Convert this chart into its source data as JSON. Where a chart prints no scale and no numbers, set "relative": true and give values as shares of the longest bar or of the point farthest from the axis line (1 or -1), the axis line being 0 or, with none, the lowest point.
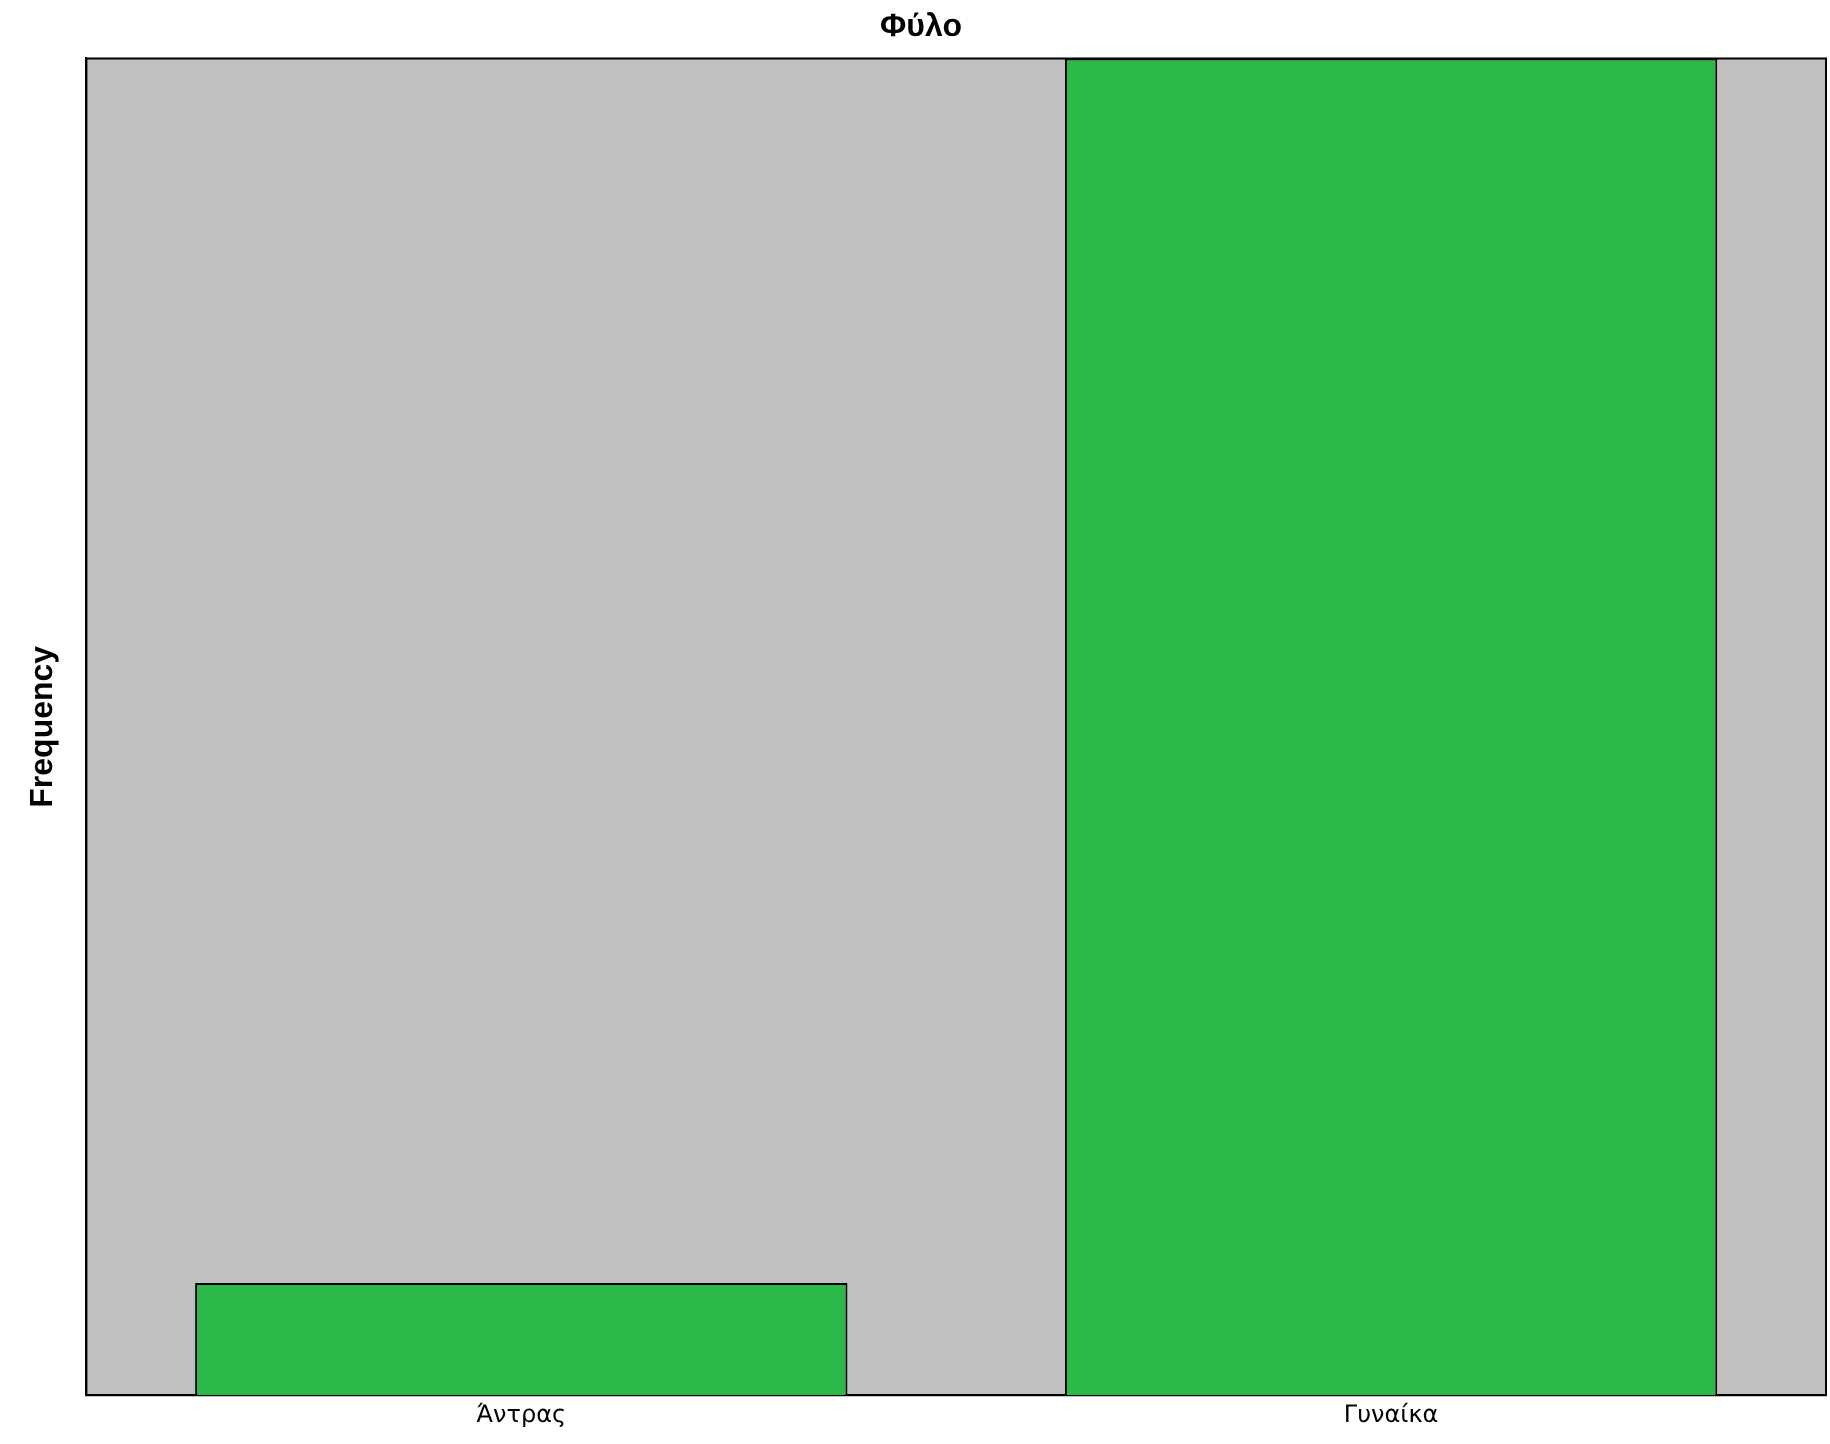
{
  "chart_data": {
    "type": "bar",
    "title": "Φύλο",
    "ylabel": "Frequency",
    "categories": [
      "Άντρας",
      "Γυναίκα"
    ],
    "values": [
      0.084,
      1
    ],
    "color": "#2db84a",
    "relative": true,
    "grid": false,
    "legend": false
  }
}
